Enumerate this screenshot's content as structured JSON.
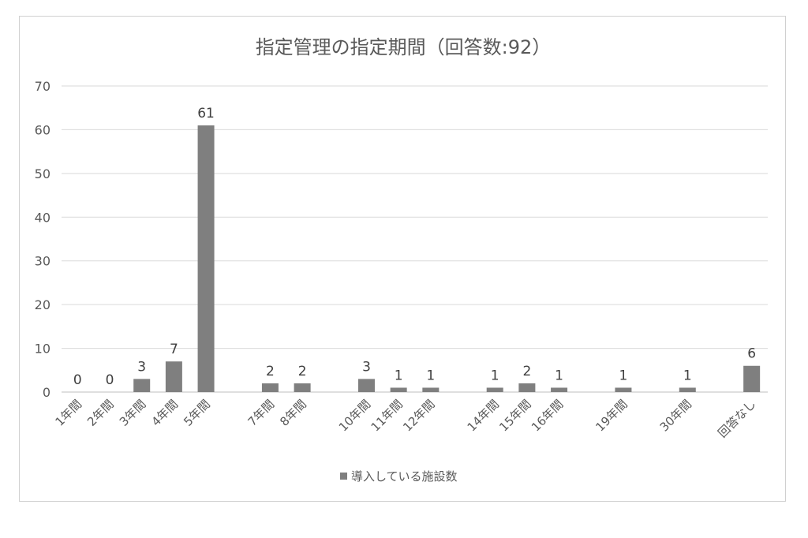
{
  "chart_data": {
    "type": "bar",
    "title": "指定管理の指定期間（回答数:92）",
    "categories": [
      "1年間",
      "2年間",
      "3年間",
      "4年間",
      "5年間",
      "",
      "7年間",
      "8年間",
      "",
      "10年間",
      "11年間",
      "12年間",
      "",
      "14年間",
      "15年間",
      "16年間",
      "",
      "19年間",
      "",
      "30年間",
      "",
      "回答なし"
    ],
    "series": [
      {
        "name": "導入している施設数",
        "values": [
          0,
          0,
          3,
          7,
          61,
          null,
          2,
          2,
          null,
          3,
          1,
          1,
          null,
          1,
          2,
          1,
          null,
          1,
          null,
          1,
          null,
          6
        ],
        "color": "#7f7f7f"
      }
    ],
    "yticks": [
      "0",
      "10",
      "20",
      "30",
      "40",
      "50",
      "60",
      "70"
    ],
    "ylim": [
      0,
      70
    ],
    "grid": true,
    "legend": "bottom"
  }
}
